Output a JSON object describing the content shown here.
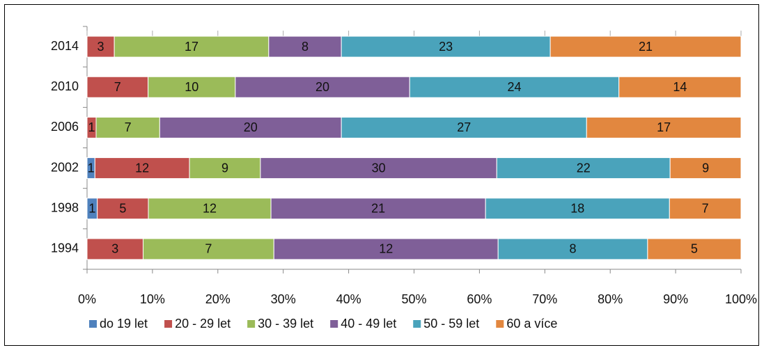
{
  "chart_data": {
    "type": "bar100h",
    "categories": [
      "2014",
      "2010",
      "2006",
      "2002",
      "1998",
      "1994"
    ],
    "series": [
      {
        "name": "do 19 let",
        "color": "#4f81bd",
        "values": [
          0,
          0,
          0,
          1,
          1,
          0
        ]
      },
      {
        "name": "20 - 29 let",
        "color": "#c0504d",
        "values": [
          3,
          7,
          1,
          12,
          5,
          3
        ]
      },
      {
        "name": "30 - 39 let",
        "color": "#9bbb59",
        "values": [
          17,
          10,
          7,
          9,
          12,
          7
        ]
      },
      {
        "name": "40 - 49 let",
        "color": "#7f5f98",
        "values": [
          8,
          20,
          20,
          30,
          21,
          12
        ]
      },
      {
        "name": "50 - 59 let",
        "color": "#4aa3bb",
        "values": [
          23,
          24,
          27,
          22,
          18,
          8
        ]
      },
      {
        "name": "60 a více",
        "color": "#e2873f",
        "values": [
          21,
          14,
          17,
          9,
          7,
          5
        ]
      }
    ],
    "xlim": [
      0,
      100
    ],
    "xticks": [
      {
        "value": 0,
        "label": "0%"
      },
      {
        "value": 10,
        "label": "10%"
      },
      {
        "value": 20,
        "label": "20%"
      },
      {
        "value": 30,
        "label": "30%"
      },
      {
        "value": 40,
        "label": "40%"
      },
      {
        "value": 50,
        "label": "50%"
      },
      {
        "value": 60,
        "label": "60%"
      },
      {
        "value": 70,
        "label": "70%"
      },
      {
        "value": 80,
        "label": "80%"
      },
      {
        "value": 90,
        "label": "90%"
      },
      {
        "value": 100,
        "label": "100%"
      }
    ],
    "legend": "bottom"
  }
}
